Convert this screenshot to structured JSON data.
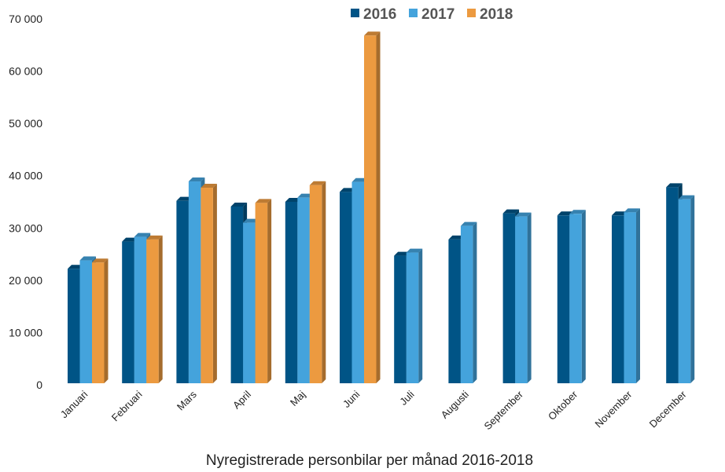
{
  "chart_data": {
    "type": "bar",
    "title": "Nyregistrerade personbilar per månad 2016-2018",
    "xlabel": "",
    "ylabel": "",
    "ylim": [
      0,
      70000
    ],
    "yticks": [
      0,
      10000,
      20000,
      30000,
      40000,
      50000,
      60000,
      70000
    ],
    "ytick_labels": [
      "0",
      "10 000",
      "20 000",
      "30 000",
      "40 000",
      "50 000",
      "60 000",
      "70 000"
    ],
    "grid": false,
    "legend_position": "top",
    "categories": [
      "Januari",
      "Februari",
      "Mars",
      "April",
      "Maj",
      "Juni",
      "Juli",
      "Augusti",
      "September",
      "Oktober",
      "November",
      "December"
    ],
    "series": [
      {
        "name": "2016",
        "color": "#005486",
        "values": [
          22200,
          27400,
          35200,
          34100,
          35000,
          36900,
          24700,
          27800,
          32800,
          32400,
          32400,
          37800
        ]
      },
      {
        "name": "2017",
        "color": "#44a3dc",
        "values": [
          23800,
          28300,
          38900,
          31000,
          35800,
          38800,
          25300,
          30400,
          32200,
          32700,
          33000,
          35500
        ]
      },
      {
        "name": "2018",
        "color": "#ec9a40",
        "values": [
          23400,
          27800,
          37700,
          34800,
          38200,
          66800,
          null,
          null,
          null,
          null,
          null,
          null
        ]
      }
    ]
  }
}
